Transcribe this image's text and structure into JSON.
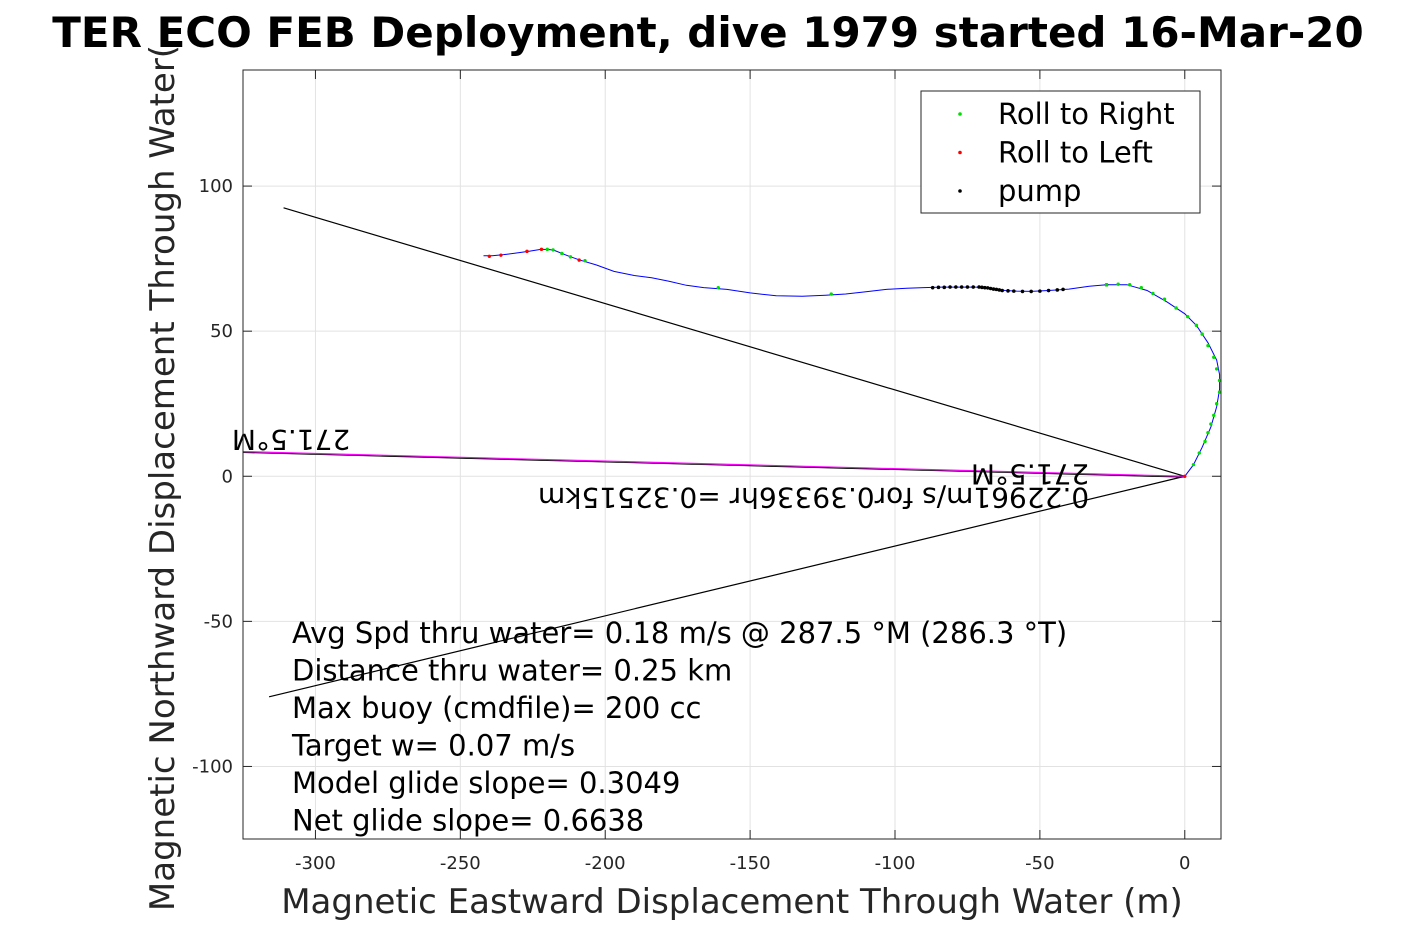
{
  "chart_data": {
    "type": "line",
    "title": "TER ECO FEB Deployment, dive 1979 started 16-Mar-20",
    "xlabel": "Magnetic Eastward Displacement Through Water (m)",
    "ylabel": "Magnetic Northward Displacement Through Water(",
    "xlim": [
      -325,
      12.5
    ],
    "ylim": [
      -125,
      140
    ],
    "x_ticks": [
      -300,
      -250,
      -200,
      -150,
      -100,
      -50,
      0
    ],
    "y_ticks": [
      -100,
      -50,
      0,
      50,
      100
    ],
    "grid": true,
    "legend_position": "top-right",
    "legend": [
      {
        "label": "Roll to Right",
        "color": "#00dd00"
      },
      {
        "label": "Roll to Left",
        "color": "#ff0000"
      },
      {
        "label": "pump",
        "color": "#000000"
      }
    ],
    "track": {
      "color": "#0000ff",
      "points": [
        [
          0,
          0
        ],
        [
          3,
          4
        ],
        [
          6,
          10
        ],
        [
          9,
          17
        ],
        [
          11,
          24
        ],
        [
          12,
          30
        ],
        [
          12,
          35
        ],
        [
          11,
          40
        ],
        [
          8,
          46
        ],
        [
          4,
          52
        ],
        [
          0,
          56
        ],
        [
          -6,
          60
        ],
        [
          -13,
          64
        ],
        [
          -20,
          66
        ],
        [
          -27,
          66
        ],
        [
          -33,
          65.5
        ],
        [
          -40,
          64.5
        ],
        [
          -47,
          64
        ],
        [
          -53,
          63.7
        ],
        [
          -58,
          63.8
        ],
        [
          -62,
          64
        ],
        [
          -66,
          64.6
        ],
        [
          -72,
          65.2
        ],
        [
          -78,
          65.2
        ],
        [
          -84,
          65.2
        ],
        [
          -90,
          65
        ],
        [
          -96,
          64.8
        ],
        [
          -103,
          64.4
        ],
        [
          -110,
          63.6
        ],
        [
          -117,
          62.8
        ],
        [
          -124,
          62.4
        ],
        [
          -132,
          62
        ],
        [
          -141,
          62.2
        ],
        [
          -150,
          63.2
        ],
        [
          -158,
          64.4
        ],
        [
          -166,
          65
        ],
        [
          -172,
          65.8
        ],
        [
          -178,
          67.2
        ],
        [
          -184,
          68.4
        ],
        [
          -190,
          69.2
        ],
        [
          -197,
          70.6
        ],
        [
          -203,
          72.8
        ],
        [
          -209,
          74.6
        ],
        [
          -213,
          76
        ],
        [
          -218,
          78
        ],
        [
          -222,
          78.2
        ],
        [
          -226,
          77.6
        ],
        [
          -230,
          77
        ],
        [
          -235,
          76.4
        ],
        [
          -239,
          76
        ],
        [
          -242,
          76
        ]
      ]
    },
    "roll_right": [
      [
        3,
        4
      ],
      [
        5,
        8
      ],
      [
        7,
        12
      ],
      [
        8,
        15
      ],
      [
        9,
        18
      ],
      [
        10,
        21
      ],
      [
        11,
        25
      ],
      [
        12,
        29
      ],
      [
        12,
        33
      ],
      [
        11,
        37
      ],
      [
        10,
        41
      ],
      [
        8,
        45
      ],
      [
        6,
        49
      ],
      [
        4,
        52
      ],
      [
        1,
        55
      ],
      [
        -3,
        58
      ],
      [
        -7,
        61
      ],
      [
        -11,
        63
      ],
      [
        -15,
        65
      ],
      [
        -19,
        66
      ],
      [
        -23,
        66.2
      ],
      [
        -27,
        66
      ],
      [
        -161,
        65
      ],
      [
        -122,
        62.8
      ],
      [
        -207,
        74.3
      ],
      [
        -212,
        75.6
      ],
      [
        -215,
        76.8
      ],
      [
        -218,
        78
      ],
      [
        -220,
        78.2
      ]
    ],
    "roll_left": [
      [
        0,
        0
      ],
      [
        -209,
        74.5
      ],
      [
        -222,
        78.2
      ],
      [
        -227,
        77.5
      ],
      [
        -236,
        76.2
      ],
      [
        -240,
        75.8
      ]
    ],
    "pump": [
      [
        -27,
        66
      ],
      [
        -42,
        64.4
      ],
      [
        -44,
        64.2
      ],
      [
        -47,
        64
      ],
      [
        -50,
        63.8
      ],
      [
        -53,
        63.7
      ],
      [
        -56,
        63.7
      ],
      [
        -59,
        63.8
      ],
      [
        -61,
        63.9
      ],
      [
        -63,
        64
      ],
      [
        -64,
        64.2
      ],
      [
        -65,
        64.4
      ],
      [
        -66,
        64.5
      ],
      [
        -67,
        64.7
      ],
      [
        -68,
        64.9
      ],
      [
        -69,
        65
      ],
      [
        -70,
        65.1
      ],
      [
        -71,
        65.2
      ],
      [
        -73,
        65.2
      ],
      [
        -75,
        65.2
      ],
      [
        -77,
        65.2
      ],
      [
        -79,
        65.2
      ],
      [
        -81,
        65.2
      ],
      [
        -83,
        65.1
      ],
      [
        -85,
        65.1
      ],
      [
        -87,
        65
      ]
    ],
    "wedge_lines": [
      {
        "from": [
          0,
          0
        ],
        "to": [
          -311,
          92.5
        ]
      },
      {
        "from": [
          0,
          0
        ],
        "to": [
          -316,
          -76
        ]
      }
    ],
    "heading_line": {
      "from": [
        0,
        0
      ],
      "to": [
        -325,
        8.5
      ],
      "color": "#ff00ff"
    },
    "annotations": [
      {
        "text": "271.5°M",
        "x": -33,
        "y": 4,
        "rotation": 180
      },
      {
        "text": "0.22961m/s for0.39336hr =0.32515km",
        "x": -33,
        "y": -4,
        "rotation": 180
      },
      {
        "text": "271.5°M",
        "x": -288,
        "y": 16,
        "rotation": 180
      }
    ],
    "stats": [
      "Avg Spd thru water=  0.18 m/s @ 287.5 °M (286.3 °T)",
      "Distance thru water=  0.25 km",
      "Max buoy (cmdfile)= 200 cc",
      "Target w= 0.07 m/s",
      "Model glide slope= 0.3049",
      "Net glide slope= 0.6638"
    ]
  }
}
